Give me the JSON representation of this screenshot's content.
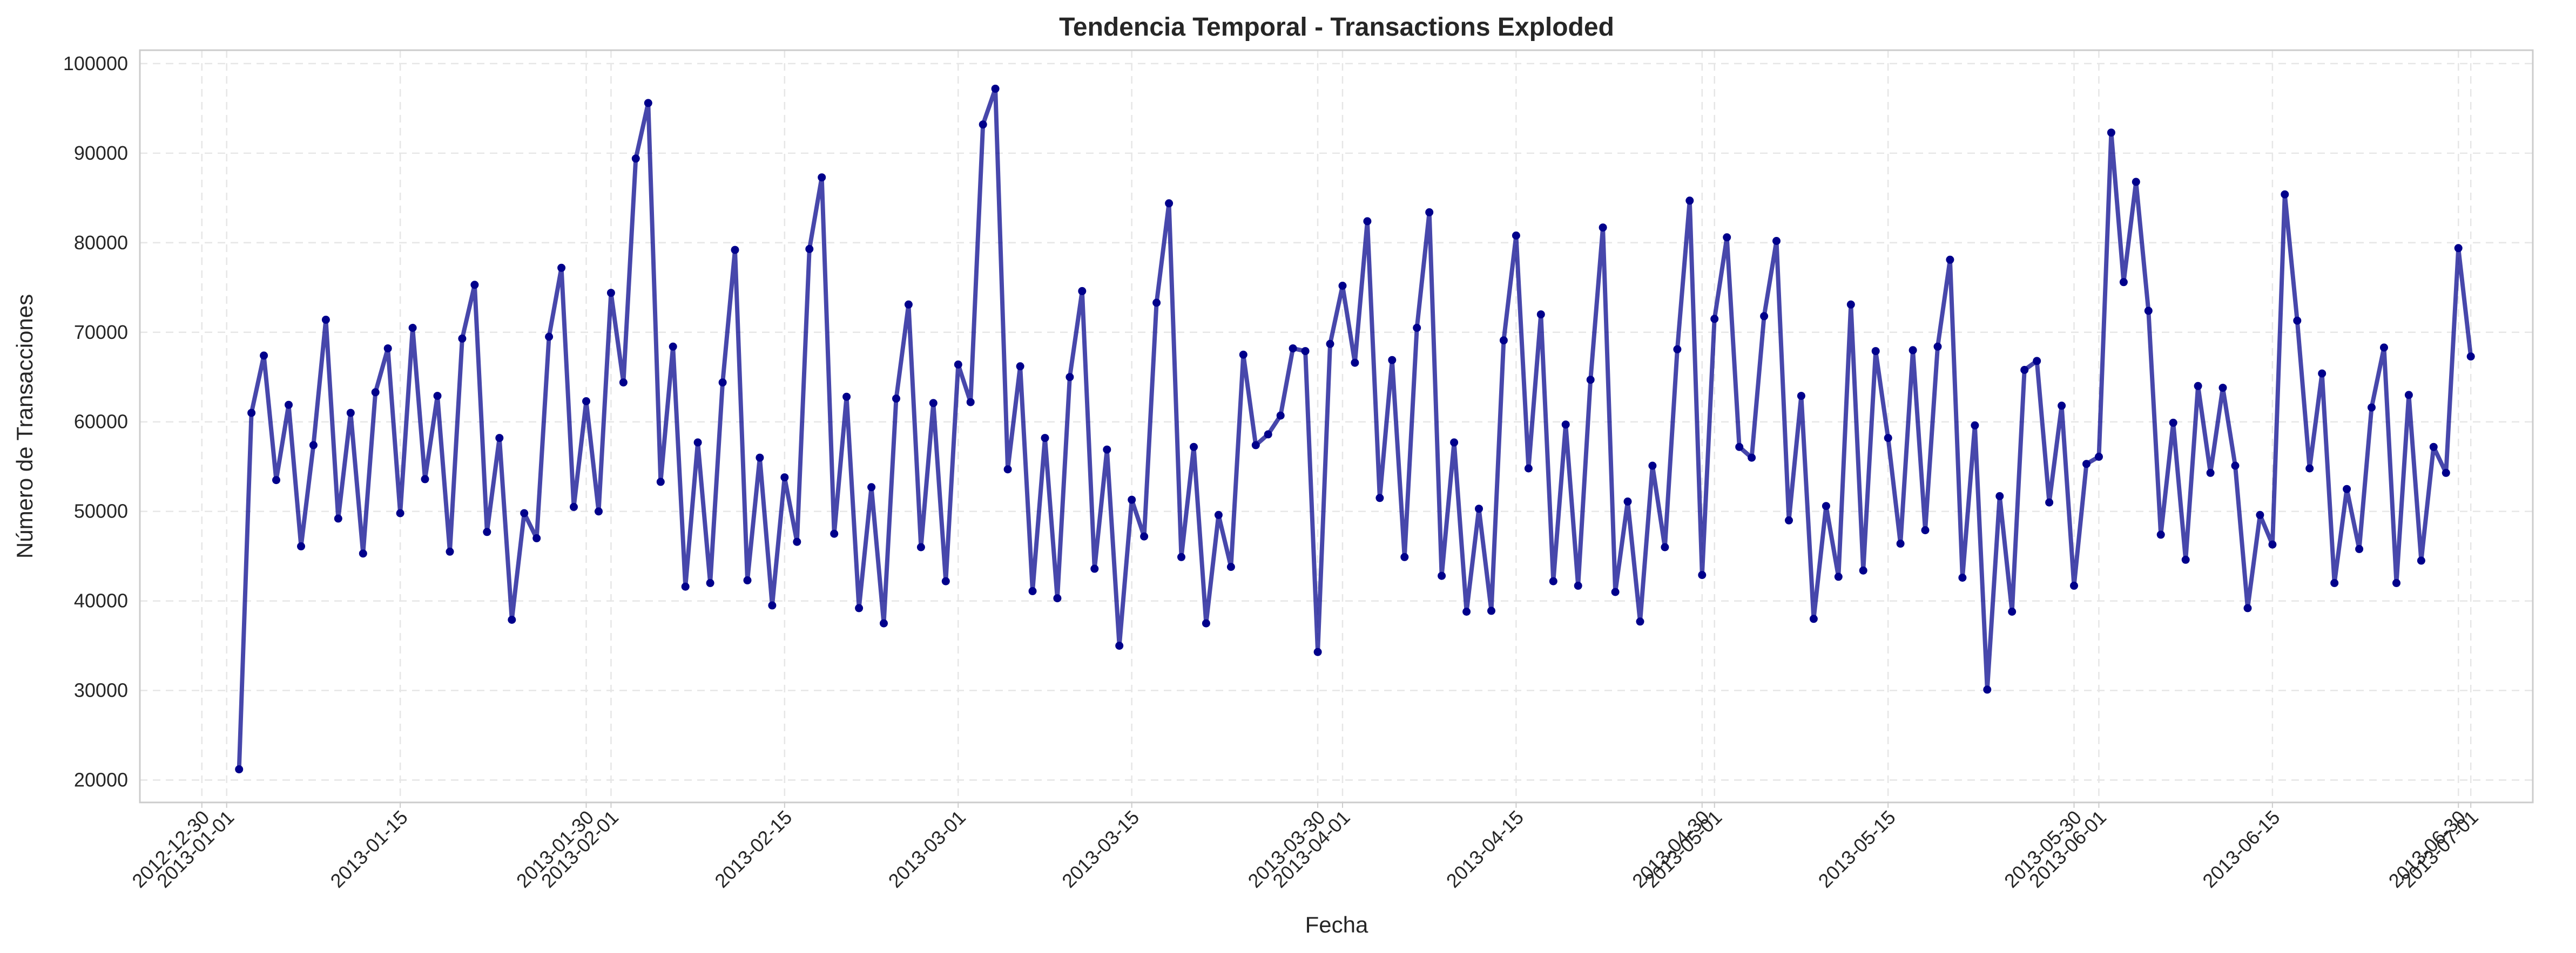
{
  "chart_data": {
    "type": "line",
    "title": "Tendencia Temporal - Transactions Exploded",
    "xlabel": "Fecha",
    "ylabel": "Número de Transacciones",
    "x_start": "2013-01-02",
    "x_range": [
      "2012-12-25",
      "2013-07-06"
    ],
    "ylim": [
      17500,
      101500
    ],
    "yticks": [
      20000,
      30000,
      40000,
      50000,
      60000,
      70000,
      80000,
      90000,
      100000
    ],
    "xticks": [
      "2012-12-30",
      "2013-01-01",
      "2013-01-15",
      "2013-01-30",
      "2013-02-01",
      "2013-02-15",
      "2013-03-01",
      "2013-03-15",
      "2013-03-30",
      "2013-04-01",
      "2013-04-15",
      "2013-04-30",
      "2013-05-01",
      "2013-05-15",
      "2013-05-30",
      "2013-06-01",
      "2013-06-15",
      "2013-06-30",
      "2013-07-01"
    ],
    "grid": true,
    "colors": {
      "line": "#00008b",
      "marker": "#00008b"
    },
    "series": [
      {
        "values": [
          21200,
          61000,
          67400,
          53500,
          61900,
          46100,
          57400,
          71400,
          49200,
          61000,
          45300,
          63300,
          68200,
          49800,
          70500,
          53600,
          62900,
          45500,
          69300,
          75300,
          47700,
          58200,
          37900,
          49800,
          47000,
          69500,
          77200,
          50500,
          62300,
          50000,
          74400,
          64400,
          89400,
          95600,
          53300,
          68400,
          41600,
          57700,
          42000,
          64400,
          79200,
          42300,
          56000,
          39500,
          53800,
          46600,
          79300,
          87300,
          47500,
          62800,
          39200,
          52700,
          37500,
          62600,
          73100,
          46000,
          62100,
          42200,
          66400,
          62200,
          93200,
          97200,
          54700,
          66200,
          41100,
          58200,
          40300,
          65000,
          74600,
          43600,
          56900,
          35000,
          51300,
          47200,
          73300,
          84400,
          44900,
          57200,
          37500,
          49600,
          43800,
          67500,
          57400,
          58600,
          60700,
          68200,
          67900,
          34300,
          68700,
          75200,
          66600,
          82400,
          51500,
          66900,
          44900,
          70500,
          83400,
          42800,
          57700,
          38800,
          50300,
          38900,
          69100,
          80800,
          54800,
          72000,
          42200,
          59700,
          41700,
          64700,
          81700,
          41000,
          51100,
          37700,
          55100,
          46000,
          68100,
          84700,
          42900,
          71500,
          80600,
          57200,
          56000,
          71800,
          80200,
          49000,
          62900,
          38000,
          50600,
          42700,
          73100,
          43400,
          67900,
          58200,
          46400,
          68000,
          47900,
          68400,
          78100,
          42600,
          59600,
          30100,
          51700,
          38800,
          65800,
          66800,
          51000,
          61800,
          41700,
          55300,
          56100,
          92300,
          75600,
          86800,
          72400,
          47400,
          59900,
          44600,
          64000,
          54300,
          63800,
          55100,
          39200,
          49600,
          46300,
          85400,
          71300,
          54800,
          65400,
          42000,
          52500,
          45800,
          61600,
          68300,
          42000,
          63000,
          44500,
          57200,
          54300,
          79400,
          67300
        ]
      }
    ]
  }
}
